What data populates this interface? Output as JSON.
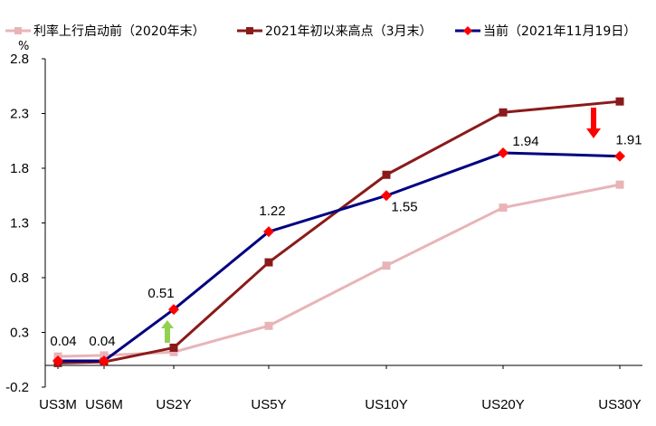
{
  "chart_data": {
    "type": "line",
    "y_unit": "%",
    "ylim": [
      -0.2,
      2.8
    ],
    "yticks": [
      "2.8",
      "2.3",
      "1.8",
      "1.3",
      "0.8",
      "0.3",
      "-0.2"
    ],
    "ytick_values": [
      2.8,
      2.3,
      1.8,
      1.3,
      0.8,
      0.3,
      -0.2
    ],
    "x": [
      "US3M",
      "US6M",
      "US2Y",
      "US5Y",
      "US10Y",
      "US20Y",
      "US30Y"
    ],
    "x_positions_years": [
      0.25,
      0.5,
      2,
      5,
      10,
      20,
      30
    ],
    "grid": false,
    "legend_position": "top",
    "series": [
      {
        "name": "利率上行启动前（2020年末）",
        "color": "#E8B4B8",
        "marker": "square",
        "values": [
          0.08,
          0.09,
          0.12,
          0.36,
          0.91,
          1.44,
          1.65
        ]
      },
      {
        "name": "2021年初以来高点（3月末）",
        "color": "#8B1A1A",
        "marker": "square",
        "values": [
          0.02,
          0.03,
          0.16,
          0.94,
          1.74,
          2.31,
          2.41
        ]
      },
      {
        "name": "当前（2021年11月19日）",
        "color": "#000080",
        "marker": "diamond",
        "marker_color": "#FF0000",
        "values": [
          0.04,
          0.04,
          0.51,
          1.22,
          1.55,
          1.94,
          1.91
        ],
        "labels": [
          "0.04",
          "0.04",
          "0.51",
          "1.22",
          "1.55",
          "1.94",
          "1.91"
        ]
      }
    ],
    "annotations": [
      {
        "type": "arrow-up",
        "color": "#92D050",
        "at": "US2Y"
      },
      {
        "type": "arrow-down",
        "color": "#FF0000",
        "at": "US30Y"
      }
    ]
  }
}
